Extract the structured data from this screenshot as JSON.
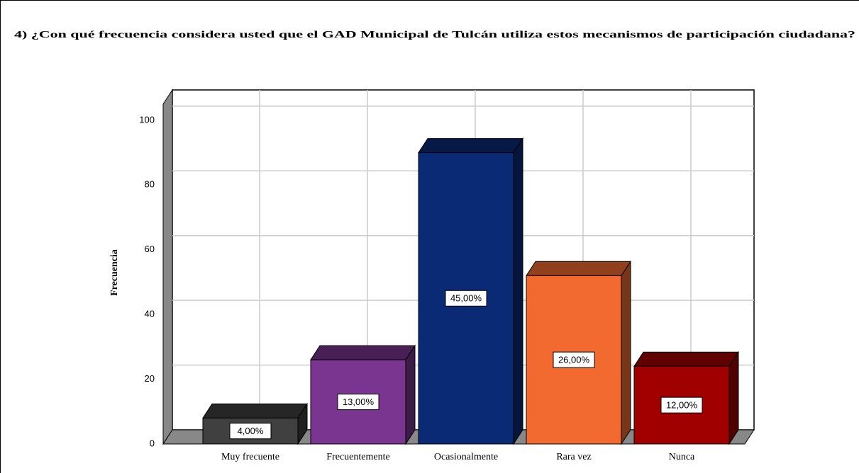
{
  "chart_data": {
    "type": "bar3d",
    "title": "4) ¿Con qué frecuencia considera usted que el GAD Municipal de Tulcán utiliza estos mecanismos de participación ciudadana?",
    "y_label": "Frecuencia",
    "categories": [
      "Muy frecuente",
      "Frecuentemente",
      "Ocasionalmente",
      "Rara vez",
      "Nunca"
    ],
    "values": [
      8,
      26,
      90,
      52,
      24
    ],
    "bar_labels": [
      "4,00%",
      "13,00%",
      "45,00%",
      "26,00%",
      "12,00%"
    ],
    "colors": [
      "#404040",
      "#7a3590",
      "#0b2a75",
      "#f26a30",
      "#a00000"
    ],
    "ylim": [
      0,
      105
    ],
    "yticks": [
      0,
      20,
      40,
      60,
      80,
      100
    ],
    "grid": true
  }
}
